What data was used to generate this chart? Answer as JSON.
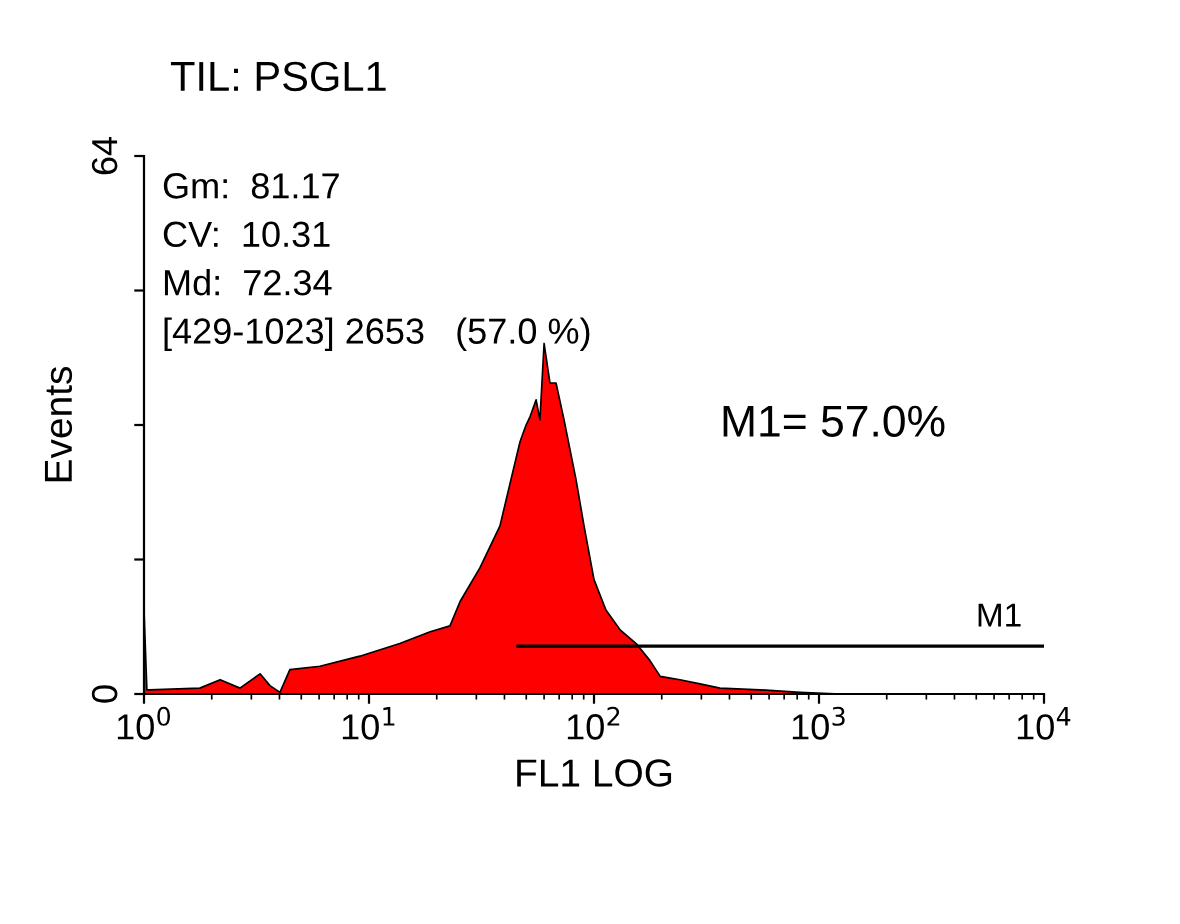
{
  "chart_data": {
    "type": "area",
    "title": "TIL: PSGL1",
    "xlabel": "FL1 LOG",
    "ylabel": "Events",
    "log": "x",
    "grid": false,
    "xlim": [
      1,
      10000
    ],
    "ylim": [
      0,
      64
    ],
    "xticks": [
      {
        "value": 1,
        "label": "10$^{0}$"
      },
      {
        "value": 10,
        "label": "10$^{1}$"
      },
      {
        "value": 100,
        "label": "10$^{2}$"
      },
      {
        "value": 1000,
        "label": "10$^{3}$"
      },
      {
        "value": 10000,
        "label": "10$^{4}$"
      }
    ],
    "yticks": [
      0,
      {
        "value": 16,
        "label": null
      },
      {
        "value": 32,
        "label": null
      },
      {
        "value": 48,
        "label": null
      },
      64
    ],
    "series": [
      {
        "color": "#ff0000",
        "x": [
          1.0,
          1.03,
          1.06,
          1.77,
          2.18,
          2.67,
          3.28,
          3.63,
          4.02,
          4.45,
          6.05,
          9.1,
          13.7,
          18.7,
          22.9,
          25.4,
          31.1,
          38.2,
          42.3,
          46.9,
          49.9,
          52.0,
          55.3,
          57.5,
          60.0,
          63.7,
          67.8,
          73.6,
          83.2,
          90.3,
          100,
          113,
          131,
          154,
          177,
          197,
          241,
          296,
          363,
          547,
          824,
          1240
        ],
        "values": [
          10,
          0.5,
          0.5,
          0.7,
          1.7,
          0.7,
          2.4,
          1,
          0.2,
          2.9,
          3.3,
          4.5,
          6,
          7.4,
          8.1,
          11,
          15,
          20,
          25,
          30,
          32,
          33,
          35,
          32.6,
          41.7,
          37,
          37,
          32.6,
          25.5,
          20,
          13.6,
          10,
          7.6,
          6,
          4,
          2.1,
          1.7,
          1.2,
          0.7,
          0.5,
          0.2,
          0
        ]
      },
      {
        "type": "line",
        "name": "M1",
        "color": "#000000",
        "x": [
          45.9,
          10000
        ],
        "values": [
          5.7,
          5.7
        ]
      }
    ],
    "annotations": [
      "Gm:  81.17",
      "CV:  10.31",
      "Md:  72.34",
      "[429-1023] 2653   (57.0 %)",
      "M1= 57.0%"
    ]
  }
}
